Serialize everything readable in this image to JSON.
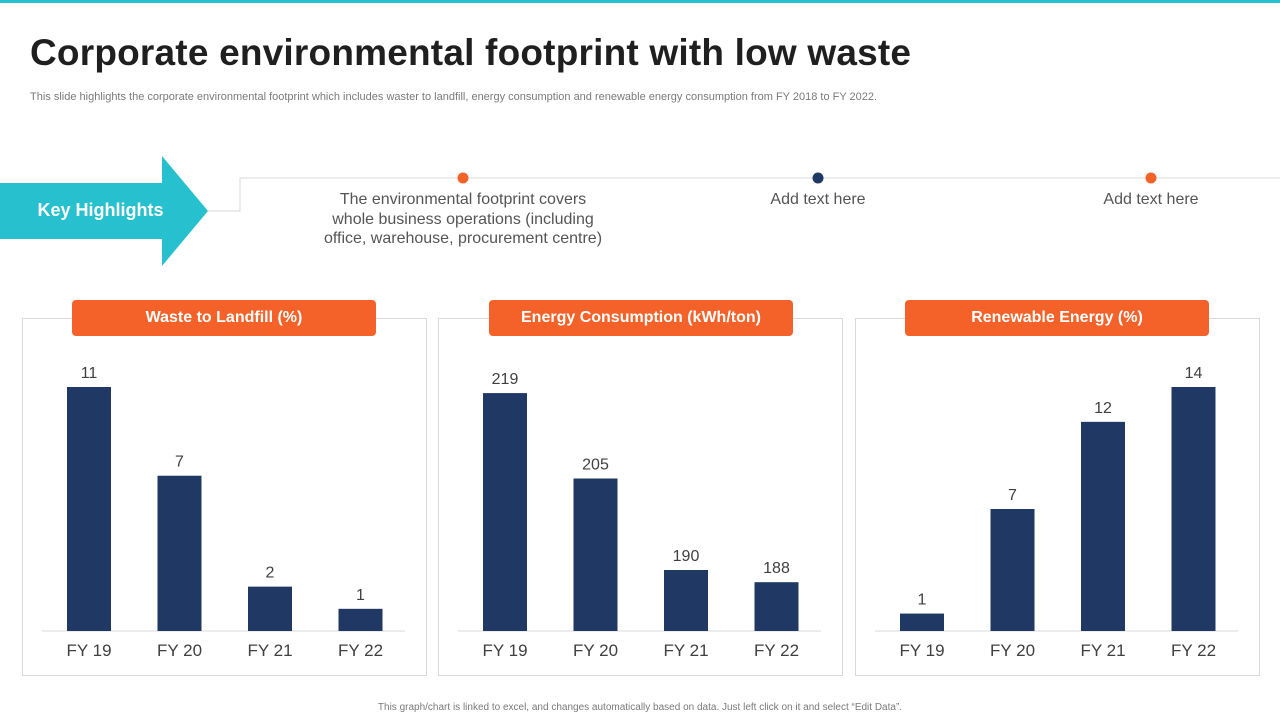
{
  "header": {
    "title": "Corporate environmental footprint with low waste",
    "subtitle": "This slide highlights the corporate environmental footprint which includes waster to landfill, energy consumption and renewable energy consumption from FY 2018 to FY  2022."
  },
  "highlights": {
    "label": "Key Highlights",
    "items": [
      {
        "text": "The environmental  footprint  covers whole business operations (including office,  warehouse,  procurement  centre)",
        "dot_color": "#f4622a"
      },
      {
        "text": "Add text here",
        "dot_color": "#1f3864"
      },
      {
        "text": "Add text here",
        "dot_color": "#f4622a"
      }
    ]
  },
  "colors": {
    "accent_teal": "#27c0cf",
    "accent_orange": "#f4622a",
    "bar_navy": "#1f3864"
  },
  "chart_data": [
    {
      "type": "bar",
      "title": "Waste to Landfill (%)",
      "categories": [
        "FY 19",
        "FY 20",
        "FY 21",
        "FY 22"
      ],
      "values": [
        11,
        7,
        2,
        1
      ],
      "ylim": [
        0,
        11
      ]
    },
    {
      "type": "bar",
      "title": "Energy Consumption (kWh/ton)",
      "categories": [
        "FY 19",
        "FY 20",
        "FY 21",
        "FY 22"
      ],
      "values": [
        219,
        205,
        190,
        188
      ],
      "ylim": [
        180,
        220
      ]
    },
    {
      "type": "bar",
      "title": "Renewable Energy (%)",
      "categories": [
        "FY 19",
        "FY 20",
        "FY 21",
        "FY 22"
      ],
      "values": [
        1,
        7,
        12,
        14
      ],
      "ylim": [
        0,
        14
      ]
    }
  ],
  "footer": "This graph/chart is linked to excel, and changes automatically based on data. Just left click on it and select “Edit Data”."
}
